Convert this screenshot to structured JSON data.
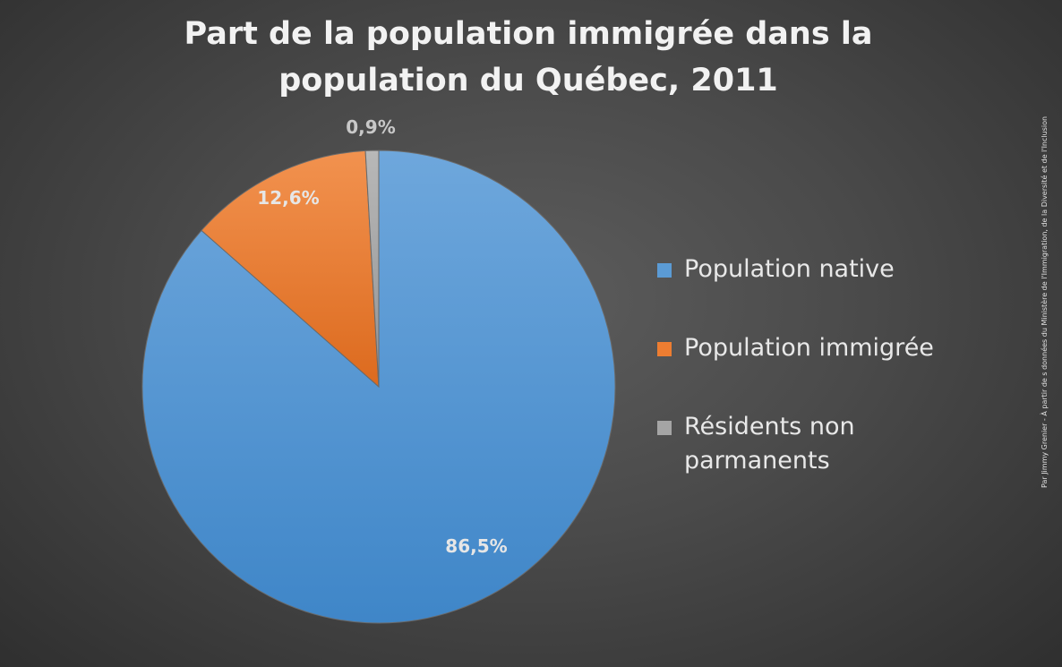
{
  "title_lines": [
    "Part de la population immigrée dans la",
    "population du Québec, 2011"
  ],
  "chart_data": {
    "type": "pie",
    "title": "Part de la population immigrée dans la population du Québec, 2011",
    "slices": [
      {
        "label": "Population native",
        "value": 86.5,
        "display": "86,5%",
        "color": "#5b9bd5"
      },
      {
        "label": "Population immigrée",
        "value": 12.6,
        "display": "12,6%",
        "color": "#ed7d31"
      },
      {
        "label": "Résidents non parmanents",
        "value": 0.9,
        "display": "0,9%",
        "color": "#a5a5a5"
      }
    ],
    "legend_position": "right"
  },
  "legend": {
    "items": [
      {
        "lines": [
          "Population native"
        ],
        "color": "#5b9bd5"
      },
      {
        "lines": [
          "Population immigrée"
        ],
        "color": "#ed7d31"
      },
      {
        "lines": [
          "Résidents non",
          "parmanents"
        ],
        "color": "#a5a5a5"
      }
    ]
  },
  "credit": "Par Jimmy Grenier - À partir de s données du Ministère de l'Immigration, de la Diversité et de l'Inclusion"
}
